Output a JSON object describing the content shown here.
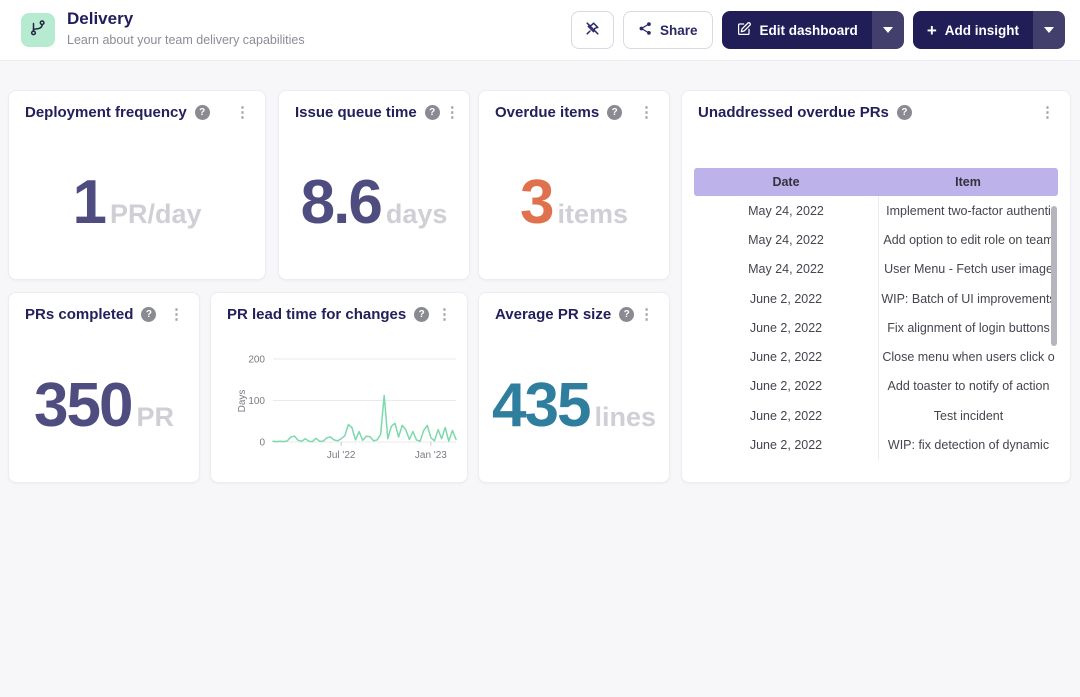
{
  "header": {
    "title": "Delivery",
    "subtitle": "Learn about your team delivery capabilities",
    "toolbar": {
      "share_label": "Share",
      "edit_label": "Edit dashboard",
      "add_label": "Add insight"
    }
  },
  "icons": {
    "help_glyph": "?",
    "kebab_glyph": "⋮",
    "plus_glyph": "+"
  },
  "colors": {
    "brand_navy": "#201d57",
    "caret_segment": "#423f6d",
    "icon_bg_mint": "#b7ebd1",
    "table_header_bg": "#bdb2ea",
    "chart_line": "#7cd9ad"
  },
  "cards": {
    "deployment_frequency": {
      "title": "Deployment frequency",
      "value": "1",
      "unit": "PR/day",
      "value_color": "#4f4c80",
      "unit_color": "#cfcfd6"
    },
    "issue_queue_time": {
      "title": "Issue queue time",
      "value": "8.6",
      "unit": "days",
      "value_color": "#4f4c80",
      "unit_color": "#cfcfd6"
    },
    "overdue_items": {
      "title": "Overdue items",
      "value": "3",
      "unit": "items",
      "value_color": "#e0714d",
      "unit_color": "#cfcfd6"
    },
    "prs_completed": {
      "title": "PRs completed",
      "value": "350",
      "unit": "PR",
      "value_color": "#4f4c80",
      "unit_color": "#cfcfd6"
    },
    "pr_lead_time": {
      "title": "PR lead time for changes"
    },
    "average_pr_size": {
      "title": "Average PR size",
      "value": "435",
      "unit": "lines",
      "value_color": "#2f7e9d",
      "unit_color": "#cfcfd6"
    },
    "unaddressed_prs": {
      "title": "Unaddressed overdue PRs",
      "columns": {
        "date": "Date",
        "item": "Item"
      },
      "rows": [
        {
          "date": "May 24, 2022",
          "item": "Implement two-factor authenti"
        },
        {
          "date": "May 24, 2022",
          "item": "Add option to edit role on team"
        },
        {
          "date": "May 24, 2022",
          "item": "User Menu - Fetch user image"
        },
        {
          "date": "June 2, 2022",
          "item": "WIP: Batch of UI improvements"
        },
        {
          "date": "June 2, 2022",
          "item": "Fix alignment of login buttons"
        },
        {
          "date": "June 2, 2022",
          "item": "Close menu when users click o"
        },
        {
          "date": "June 2, 2022",
          "item": "Add toaster to notify of action"
        },
        {
          "date": "June 2, 2022",
          "item": "Test incident"
        },
        {
          "date": "June 2, 2022",
          "item": "WIP: fix detection of dynamic"
        }
      ]
    }
  },
  "chart_data": {
    "type": "line",
    "title": "PR lead time for changes",
    "xlabel": "",
    "ylabel": "Days",
    "ylim": [
      0,
      200
    ],
    "yticks": [
      0,
      100,
      200
    ],
    "x_unit": "week",
    "x_ticks": [
      {
        "index": 19,
        "label": "Jul '22"
      },
      {
        "index": 44,
        "label": "Jan '23"
      }
    ],
    "values": [
      2,
      1,
      2,
      1,
      3,
      12,
      14,
      4,
      2,
      8,
      2,
      1,
      9,
      2,
      2,
      10,
      12,
      5,
      3,
      8,
      15,
      42,
      35,
      5,
      25,
      4,
      14,
      13,
      3,
      5,
      18,
      112,
      8,
      38,
      45,
      12,
      40,
      30,
      6,
      25,
      5,
      2,
      28,
      40,
      10,
      3,
      30,
      8,
      35,
      2,
      28,
      6
    ],
    "line_color": "#7cd9ad",
    "grid": true,
    "legend": false
  }
}
